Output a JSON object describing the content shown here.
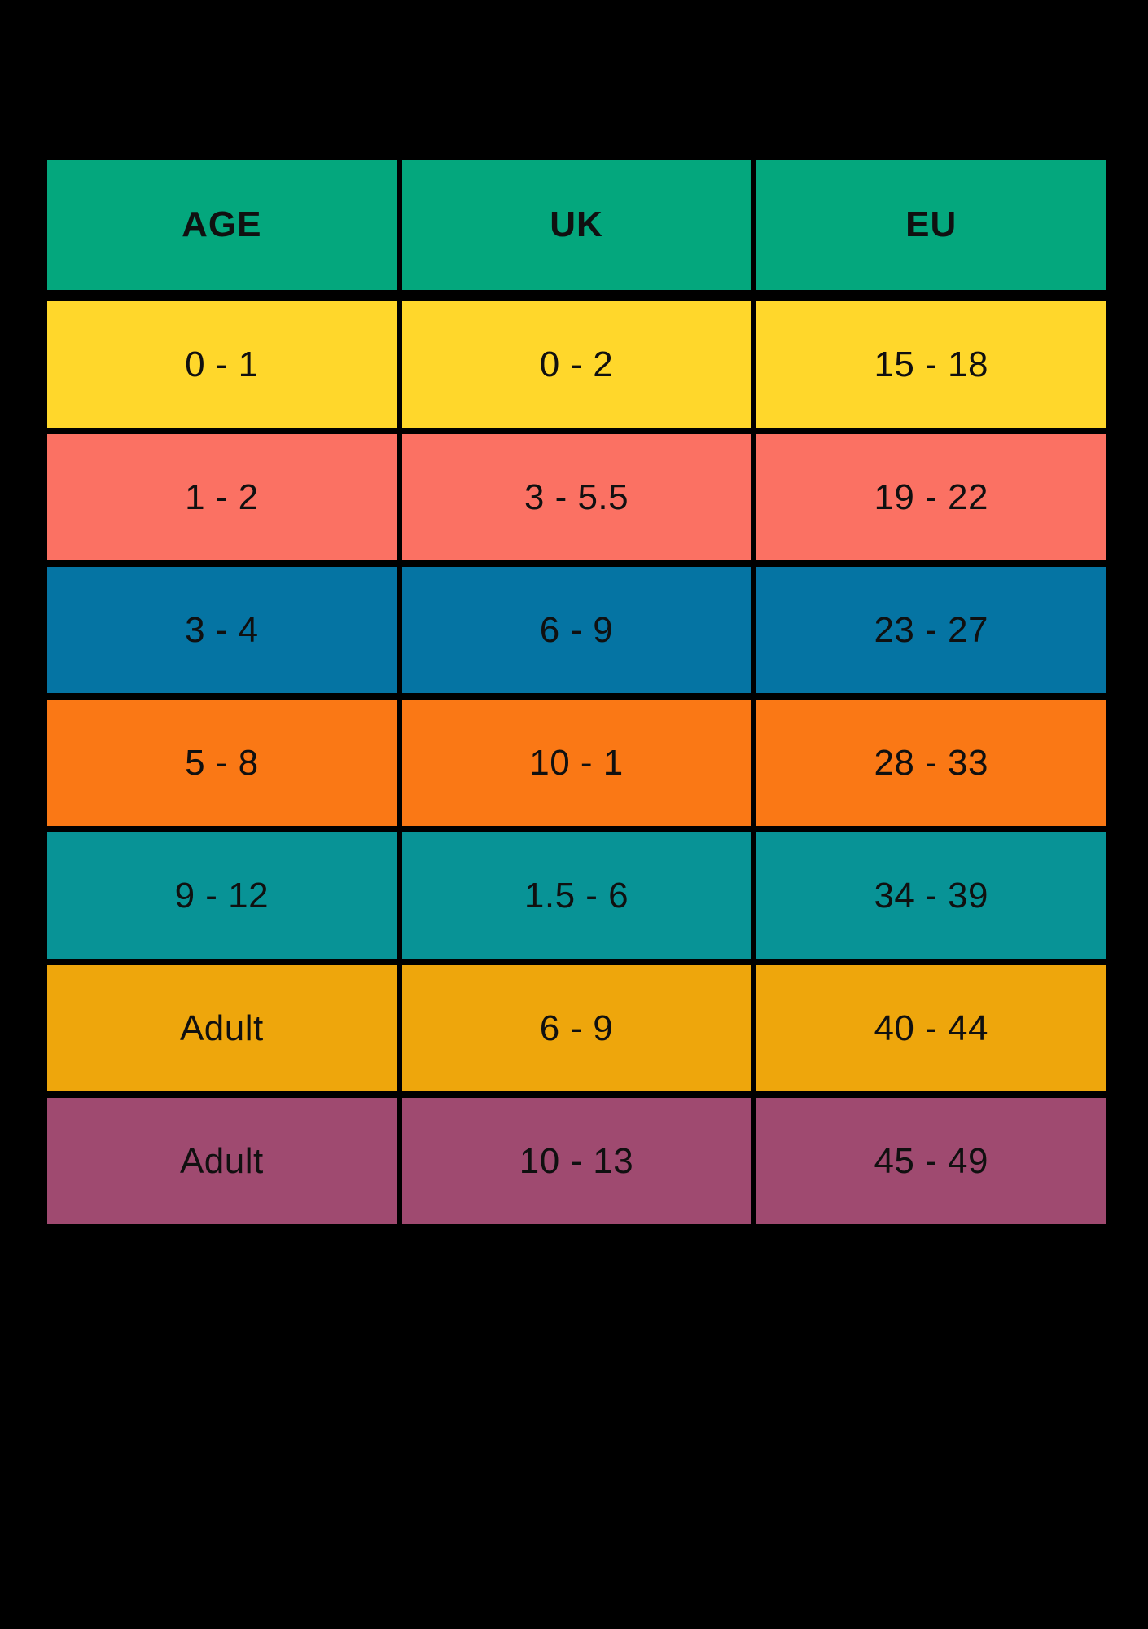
{
  "chart_data": {
    "type": "table",
    "title": "",
    "columns": [
      "AGE",
      "UK",
      "EU"
    ],
    "rows": [
      [
        "0 - 1",
        "0 - 2",
        "15 - 18"
      ],
      [
        "1 - 2",
        "3 - 5.5",
        "19 - 22"
      ],
      [
        "3 - 4",
        "6 - 9",
        "23 - 27"
      ],
      [
        "5 - 8",
        "10 - 1",
        "28 - 33"
      ],
      [
        "9 - 12",
        "1.5 - 6",
        "34 - 39"
      ],
      [
        "Adult",
        "6 - 9",
        "40 - 44"
      ],
      [
        "Adult",
        "10 - 13",
        "45 - 49"
      ]
    ],
    "colors": {
      "background": "#000000",
      "text": "#101010",
      "header_bg": "#04a77d",
      "row_bgs": [
        "#ffd72b",
        "#fb7163",
        "#0574a3",
        "#fa7815",
        "#089396",
        "#eea60c",
        "#9f4a70"
      ]
    },
    "layout": {
      "grid": "3 equal columns, 1 header row + 7 data rows",
      "separators": "black gaps between all cells",
      "legend": "none",
      "axes": "none"
    }
  }
}
